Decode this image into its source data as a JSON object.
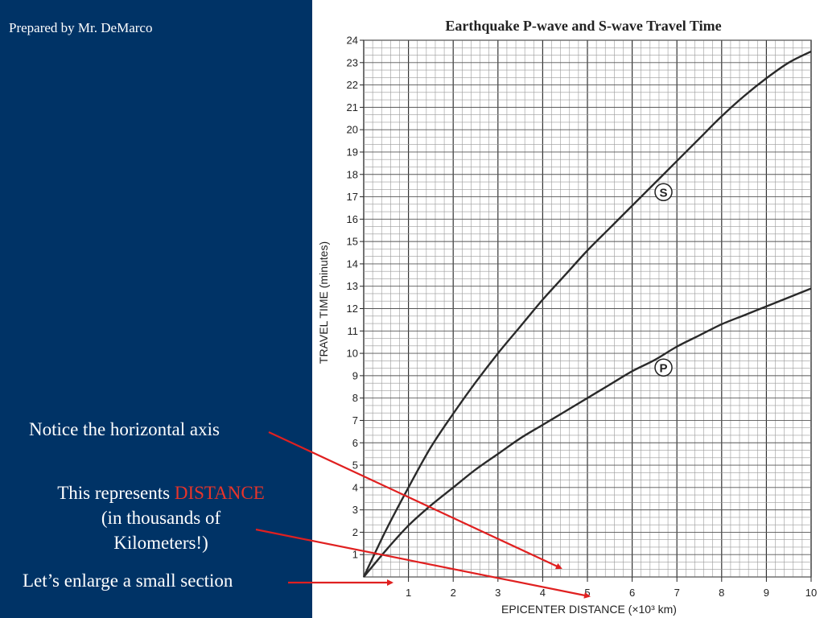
{
  "slide": {
    "credit": "Prepared by Mr. DeMarco",
    "note_axis": "Notice the horizontal axis",
    "note_distance_prefix": "This represents ",
    "note_distance_highlight": "DISTANCE",
    "note_distance_line2": "(in thousands of",
    "note_distance_line3": "Kilometers!)",
    "note_enlarge": "Let’s enlarge a small section",
    "panel_color": "#003366",
    "highlight_color": "#e8342a",
    "arrow_color": "#e02020"
  },
  "chart_data": {
    "type": "line",
    "title": "Earthquake P-wave and S-wave Travel Time",
    "xlabel": "EPICENTER DISTANCE (×10³ km)",
    "ylabel": "TRAVEL TIME (minutes)",
    "xlim": [
      0,
      10
    ],
    "ylim": [
      0,
      24
    ],
    "x_ticks": [
      "1",
      "2",
      "3",
      "4",
      "5",
      "6",
      "7",
      "8",
      "9",
      "10"
    ],
    "y_ticks": [
      "1",
      "2",
      "3",
      "4",
      "5",
      "6",
      "7",
      "8",
      "9",
      "10",
      "11",
      "12",
      "13",
      "14",
      "15",
      "16",
      "17",
      "18",
      "19",
      "20",
      "21",
      "22",
      "23",
      "24"
    ],
    "minor_per_unit_x": 5,
    "minor_per_unit_y": 3,
    "grid": true,
    "series": [
      {
        "name": "S",
        "x": [
          0,
          0.5,
          1,
          1.5,
          2,
          2.5,
          3,
          3.5,
          4,
          4.5,
          5,
          5.5,
          6,
          6.5,
          7,
          7.5,
          8,
          8.5,
          9,
          9.5,
          10
        ],
        "y": [
          0,
          2.1,
          4.0,
          5.8,
          7.3,
          8.7,
          10.0,
          11.2,
          12.4,
          13.5,
          14.6,
          15.6,
          16.6,
          17.6,
          18.6,
          19.6,
          20.6,
          21.5,
          22.3,
          23.0,
          23.5
        ]
      },
      {
        "name": "P",
        "x": [
          0,
          0.5,
          1,
          1.5,
          2,
          2.5,
          3,
          3.5,
          4,
          4.5,
          5,
          5.5,
          6,
          6.5,
          7,
          7.5,
          8,
          8.5,
          9,
          9.5,
          10
        ],
        "y": [
          0,
          1.2,
          2.3,
          3.2,
          4.0,
          4.8,
          5.5,
          6.2,
          6.8,
          7.4,
          8.0,
          8.6,
          9.2,
          9.7,
          10.3,
          10.8,
          11.3,
          11.7,
          12.1,
          12.5,
          12.9
        ]
      }
    ]
  }
}
